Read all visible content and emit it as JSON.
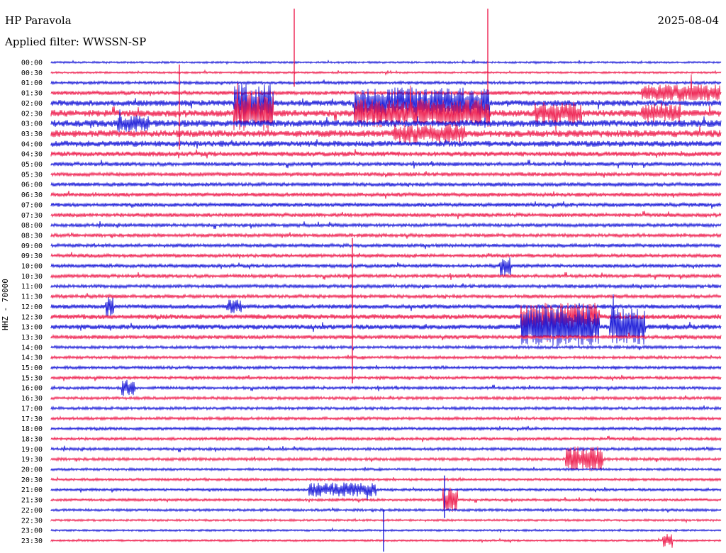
{
  "header": {
    "station": "HP Paravola",
    "date": "2025-08-04",
    "filter_label": "Applied filter: WWSSN-SP",
    "channel_label": "HHZ - 70000"
  },
  "colors": {
    "trace_a": "#1a1ad8",
    "trace_b": "#ee1f4f",
    "text": "#000000"
  },
  "chart_data": {
    "type": "line",
    "title": "",
    "xlabel": "",
    "ylabel": "HHZ - 70000",
    "grid": false,
    "legend": "none",
    "row_labels": [
      "00:00",
      "00:30",
      "01:00",
      "01:30",
      "02:00",
      "02:30",
      "03:00",
      "03:30",
      "04:00",
      "04:30",
      "05:00",
      "05:30",
      "06:00",
      "06:30",
      "07:00",
      "07:30",
      "08:00",
      "08:30",
      "09:00",
      "09:30",
      "10:00",
      "10:30",
      "11:00",
      "11:30",
      "12:00",
      "12:30",
      "13:00",
      "13:30",
      "14:00",
      "14:30",
      "15:00",
      "15:30",
      "16:00",
      "16:30",
      "17:00",
      "17:30",
      "18:00",
      "18:30",
      "19:00",
      "19:30",
      "20:00",
      "20:30",
      "21:00",
      "21:30",
      "22:00",
      "22:30",
      "23:00",
      "23:30"
    ],
    "row_amplitude": [
      1,
      1,
      1.5,
      2,
      3,
      3.5,
      3.5,
      3.5,
      3,
      2.5,
      2,
      2,
      2,
      2,
      2,
      2,
      1.8,
      1.8,
      1.8,
      1.8,
      1.8,
      1.8,
      1.8,
      1.8,
      2.2,
      2.5,
      2.5,
      2,
      1.5,
      1.5,
      1.5,
      1.5,
      1.5,
      1.5,
      1.5,
      1.5,
      1.5,
      1.5,
      1.5,
      1.5,
      1.3,
      1.3,
      1.3,
      1.3,
      1.3,
      1.1,
      1,
      1
    ],
    "events": [
      {
        "row": 4,
        "x_start": 330,
        "x_end": 385,
        "amp": 28
      },
      {
        "row": 5,
        "x_start": 330,
        "x_end": 385,
        "amp": 26
      },
      {
        "row": 4,
        "x_start": 500,
        "x_end": 690,
        "amp": 22
      },
      {
        "row": 5,
        "x_start": 500,
        "x_end": 690,
        "amp": 20
      },
      {
        "row": 7,
        "x_start": 555,
        "x_end": 655,
        "amp": 14
      },
      {
        "row": 5,
        "x_start": 755,
        "x_end": 820,
        "amp": 16
      },
      {
        "row": 5,
        "x_start": 905,
        "x_end": 960,
        "amp": 14
      },
      {
        "row": 3,
        "x_start": 905,
        "x_end": 1015,
        "amp": 12
      },
      {
        "row": 6,
        "x_start": 165,
        "x_end": 210,
        "amp": 12
      },
      {
        "row": 20,
        "x_start": 705,
        "x_end": 720,
        "amp": 14
      },
      {
        "row": 26,
        "x_start": 735,
        "x_end": 845,
        "amp": 28
      },
      {
        "row": 26,
        "x_start": 860,
        "x_end": 910,
        "amp": 26
      },
      {
        "row": 25,
        "x_start": 735,
        "x_end": 845,
        "amp": 20
      },
      {
        "row": 24,
        "x_start": 150,
        "x_end": 160,
        "amp": 14
      },
      {
        "row": 24,
        "x_start": 320,
        "x_end": 340,
        "amp": 10
      },
      {
        "row": 32,
        "x_start": 172,
        "x_end": 190,
        "amp": 12
      },
      {
        "row": 39,
        "x_start": 798,
        "x_end": 850,
        "amp": 18
      },
      {
        "row": 42,
        "x_start": 435,
        "x_end": 530,
        "amp": 10
      },
      {
        "row": 43,
        "x_start": 625,
        "x_end": 645,
        "amp": 18
      },
      {
        "row": 47,
        "x_start": 935,
        "x_end": 948,
        "amp": 10
      }
    ],
    "spikes": [
      {
        "row": 1,
        "x": 415,
        "up": 90,
        "down": 20
      },
      {
        "row": 1,
        "x": 688,
        "up": 90,
        "down": 30
      },
      {
        "row": 3,
        "x": 253,
        "up": 40,
        "down": 80
      },
      {
        "row": 19,
        "x": 497,
        "up": 25,
        "down": 180
      },
      {
        "row": 46,
        "x": 541,
        "up": 30,
        "down": 30
      },
      {
        "row": 42,
        "x": 627,
        "up": 20,
        "down": 40
      }
    ]
  }
}
